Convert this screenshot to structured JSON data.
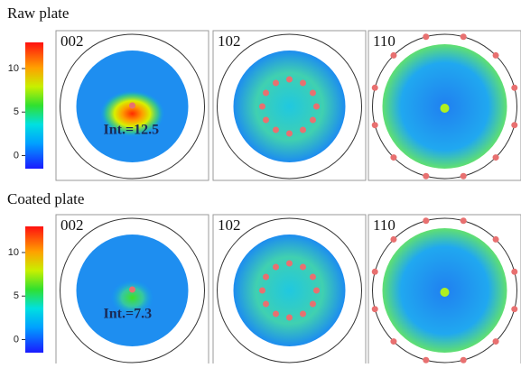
{
  "rows": [
    {
      "label": "Raw plate",
      "colorbar": {
        "range": [
          -1.5,
          13
        ],
        "ticks": [
          0,
          5,
          10
        ]
      },
      "panels": [
        {
          "label": "002",
          "annotation": "Int.=12.5"
        },
        {
          "label": "102"
        },
        {
          "label": "110"
        }
      ]
    },
    {
      "label": "Coated plate",
      "colorbar": {
        "range": [
          -1.5,
          13
        ],
        "ticks": [
          0,
          5,
          10
        ]
      },
      "panels": [
        {
          "label": "002",
          "annotation": "Int.=7.3"
        },
        {
          "label": "102"
        },
        {
          "label": "110"
        }
      ]
    }
  ]
}
